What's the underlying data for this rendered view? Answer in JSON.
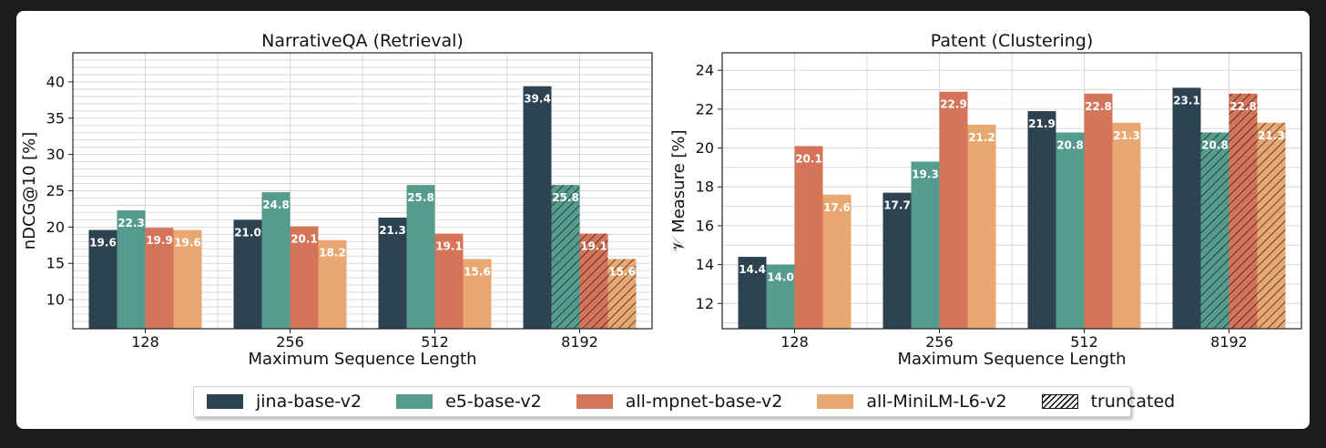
{
  "colors": {
    "jina": "#2e4351",
    "e5": "#559b8e",
    "mpnet": "#d67459",
    "minilm": "#e9a772"
  },
  "legend": [
    {
      "key": "jina",
      "label": "jina-base-v2"
    },
    {
      "key": "e5",
      "label": "e5-base-v2"
    },
    {
      "key": "mpnet",
      "label": "all-mpnet-base-v2"
    },
    {
      "key": "minilm",
      "label": "all-MiniLM-L6-v2"
    },
    {
      "key": "truncated",
      "label": "truncated"
    }
  ],
  "chart_data": [
    {
      "type": "bar",
      "title": "NarrativeQA (Retrieval)",
      "xlabel": "Maximum Sequence Length",
      "ylabel": "nDCG@10 [%]",
      "ylim": [
        6,
        44
      ],
      "yticks": [
        10,
        15,
        20,
        25,
        30,
        35,
        40
      ],
      "grid": true,
      "categories": [
        "128",
        "256",
        "512",
        "8192"
      ],
      "series": [
        {
          "name": "jina-base-v2",
          "key": "jina",
          "values": [
            19.6,
            21.0,
            21.3,
            39.4
          ],
          "truncated": [
            false,
            false,
            false,
            false
          ]
        },
        {
          "name": "e5-base-v2",
          "key": "e5",
          "values": [
            22.3,
            24.8,
            25.8,
            25.8
          ],
          "truncated": [
            false,
            false,
            false,
            true
          ]
        },
        {
          "name": "all-mpnet-base-v2",
          "key": "mpnet",
          "values": [
            19.9,
            20.1,
            19.1,
            19.1
          ],
          "truncated": [
            false,
            false,
            false,
            true
          ]
        },
        {
          "name": "all-MiniLM-L6-v2",
          "key": "minilm",
          "values": [
            19.6,
            18.2,
            15.6,
            15.6
          ],
          "truncated": [
            false,
            false,
            false,
            true
          ]
        }
      ]
    },
    {
      "type": "bar",
      "title": "Patent (Clustering)",
      "xlabel": "Maximum Sequence Length",
      "ylabel": "𝒱 Measure [%]",
      "ylim": [
        10.7,
        24.9
      ],
      "yticks": [
        12,
        14,
        16,
        18,
        20,
        22,
        24
      ],
      "grid": true,
      "categories": [
        "128",
        "256",
        "512",
        "8192"
      ],
      "series": [
        {
          "name": "jina-base-v2",
          "key": "jina",
          "values": [
            14.4,
            17.7,
            21.9,
            23.1
          ],
          "truncated": [
            false,
            false,
            false,
            false
          ]
        },
        {
          "name": "e5-base-v2",
          "key": "e5",
          "values": [
            14.0,
            19.3,
            20.8,
            20.8
          ],
          "truncated": [
            false,
            false,
            false,
            true
          ]
        },
        {
          "name": "all-mpnet-base-v2",
          "key": "mpnet",
          "values": [
            20.1,
            22.9,
            22.8,
            22.8
          ],
          "truncated": [
            false,
            false,
            false,
            true
          ]
        },
        {
          "name": "all-MiniLM-L6-v2",
          "key": "minilm",
          "values": [
            17.6,
            21.2,
            21.3,
            21.3
          ],
          "truncated": [
            false,
            false,
            false,
            true
          ]
        }
      ]
    }
  ]
}
